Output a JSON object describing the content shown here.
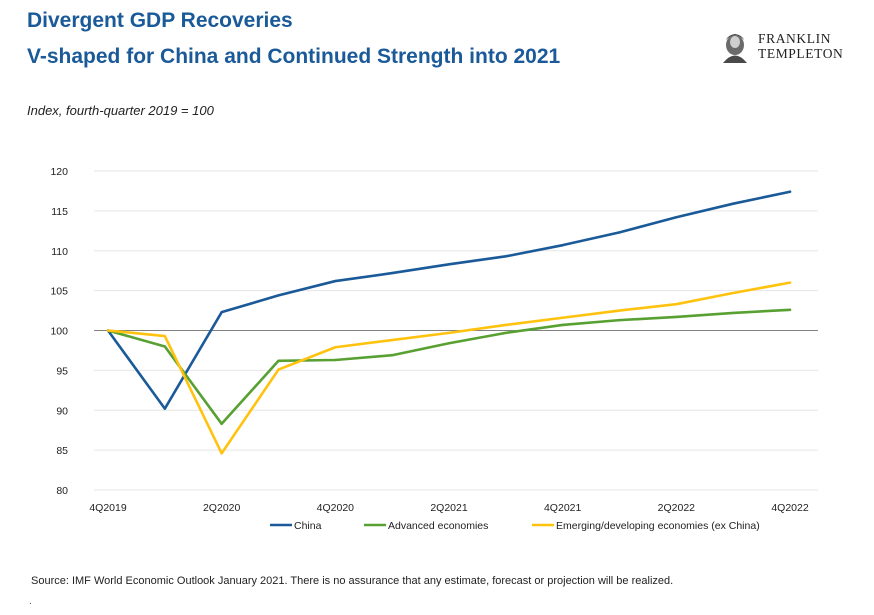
{
  "header": {
    "title_line1": "Divergent GDP Recoveries",
    "title_line2": "V-shaped for China and Continued Strength into 2021",
    "subtitle": "Index, fourth-quarter 2019 = 100"
  },
  "logo": {
    "line1": "FRANKLIN",
    "line2": "TEMPLETON",
    "icon": "portrait-medallion-icon"
  },
  "footer": {
    "source": "Source: IMF World Economic Outlook January 2021. There is no assurance that any estimate, forecast or projection will be realized.",
    "mark": "."
  },
  "colors": {
    "title": "#1b5a99",
    "china": "#1b5a99",
    "advanced": "#58a032",
    "emerging": "#ffc20e",
    "grid": "#e6e6e6",
    "baseline": "#808080"
  },
  "chart_data": {
    "type": "line",
    "title": "",
    "xlabel": "",
    "ylabel": "Index, fourth-quarter 2019 = 100",
    "ylim": [
      80,
      120
    ],
    "yticks": [
      80,
      85,
      90,
      95,
      100,
      105,
      110,
      115,
      120
    ],
    "reference_line": 100,
    "grid": true,
    "legend_position": "bottom",
    "x": [
      "4Q2019",
      "1Q2020",
      "2Q2020",
      "3Q2020",
      "4Q2020",
      "1Q2021",
      "2Q2021",
      "3Q2021",
      "4Q2021",
      "1Q2022",
      "2Q2022",
      "3Q2022",
      "4Q2022"
    ],
    "xtick_labels": [
      "4Q2019",
      "",
      "2Q2020",
      "",
      "4Q2020",
      "",
      "2Q2021",
      "",
      "4Q2021",
      "",
      "2Q2022",
      "",
      "4Q2022"
    ],
    "series": [
      {
        "name": "China",
        "color": "#1b5a99",
        "values": [
          100,
          90.2,
          102.3,
          104.4,
          106.2,
          107.2,
          108.3,
          109.3,
          110.7,
          112.3,
          114.2,
          115.9,
          117.4
        ]
      },
      {
        "name": "Advanced economies",
        "color": "#58a032",
        "values": [
          100,
          98,
          88.3,
          96.2,
          96.3,
          96.9,
          98.4,
          99.7,
          100.7,
          101.3,
          101.7,
          102.2,
          102.6
        ]
      },
      {
        "name": "Emerging/developing economies (ex China)",
        "color": "#ffc20e",
        "values": [
          100,
          99.3,
          84.6,
          95.1,
          97.9,
          98.8,
          99.7,
          100.7,
          101.6,
          102.5,
          103.3,
          104.7,
          106
        ]
      }
    ]
  }
}
